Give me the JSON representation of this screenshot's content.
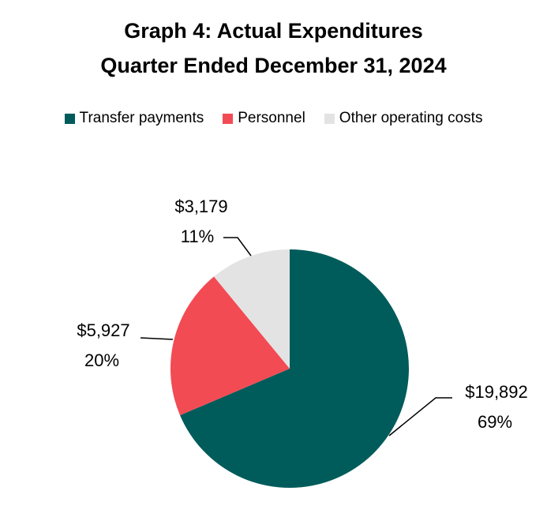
{
  "chart_data": {
    "type": "pie",
    "title": "Graph 4: Actual Expenditures",
    "subtitle": "Quarter Ended December 31, 2024",
    "legend_position": "top",
    "slices": [
      {
        "name": "Transfer payments",
        "value": 19892,
        "value_label": "$19,892",
        "percent_label": "69%",
        "color": "#005b5b"
      },
      {
        "name": "Personnel",
        "value": 5927,
        "value_label": "$5,927",
        "percent_label": "20%",
        "color": "#f24b54"
      },
      {
        "name": "Other operating costs",
        "value": 3179,
        "value_label": "$3,179",
        "percent_label": "11%",
        "color": "#e3e3e3"
      }
    ]
  }
}
